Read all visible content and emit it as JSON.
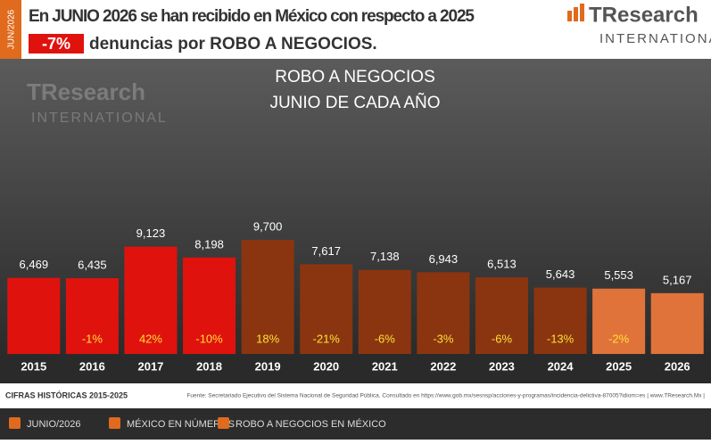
{
  "header": {
    "date_tab": "JUN/2026",
    "line1": "En JUNIO 2026 se han recibido en México con respecto a 2025",
    "change": "-7%",
    "line2": "denuncias por ROBO A NEGOCIOS.",
    "logo_main": "TResearch",
    "logo_sub": "INTERNATIONAL"
  },
  "chart_data": {
    "type": "bar",
    "title": "ROBO A NEGOCIOS",
    "subtitle": "JUNIO DE CADA AÑO",
    "categories": [
      "2015",
      "2016",
      "2017",
      "2018",
      "2019",
      "2020",
      "2021",
      "2022",
      "2023",
      "2024",
      "2025",
      "2026"
    ],
    "values": [
      6469,
      6435,
      9123,
      8198,
      9700,
      7617,
      7138,
      6943,
      6513,
      5643,
      5553,
      5167
    ],
    "value_labels": [
      "6,469",
      "6,435",
      "9,123",
      "8,198",
      "9,700",
      "7,617",
      "7,138",
      "6,943",
      "6,513",
      "5,643",
      "5,553",
      "5,167"
    ],
    "changes": [
      null,
      -1,
      42,
      -10,
      18,
      -21,
      -6,
      -3,
      -6,
      -13,
      -2,
      null
    ],
    "change_labels": [
      null,
      "-1%",
      "42%",
      "-10%",
      "18%",
      "-21%",
      "-6%",
      "-3%",
      "-6%",
      "-13%",
      "-2%",
      null
    ],
    "colors": [
      "#e0120e",
      "#e0120e",
      "#e0120e",
      "#e0120e",
      "#8a3510",
      "#8a3510",
      "#8a3510",
      "#8a3510",
      "#8a3510",
      "#8a3510",
      "#e0733a",
      "#e0733a"
    ]
  },
  "footer": {
    "period": "CIFRAS HISTÓRICAS 2015-2025",
    "source": "Fuente: Secretariado Ejecutivo del Sistema Nacional de Seguridad Pública. Consultado en https://www.gob.mx/sesnsp/acciones-y-programas/incidencia-delictiva-87005?idiom=es | www.TResearch.Mx |"
  },
  "nav": [
    "JUNIO/2026",
    "MÉXICO EN NÚMEROS",
    "ROBO A NEGOCIOS EN MÉXICO"
  ]
}
